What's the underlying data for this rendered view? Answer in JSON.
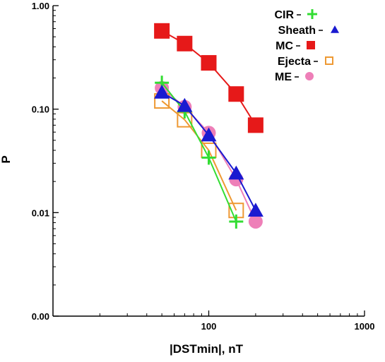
{
  "chart_data": {
    "type": "scatter",
    "title": "",
    "xlabel": "|DSTmin|, nT",
    "ylabel": "P",
    "xscale": "log",
    "yscale": "log",
    "xlim": [
      10,
      1000
    ],
    "ylim": [
      0.001,
      1
    ],
    "x_tick_labels": [
      "100",
      "1000"
    ],
    "y_tick_labels": [
      "0.00",
      "0.01",
      "0.10",
      "1.00"
    ],
    "y_tick_values": [
      0.001,
      0.01,
      0.1,
      1
    ],
    "x_tick_values": [
      100,
      1000
    ],
    "grid": false,
    "legend_position": "top-right",
    "series": [
      {
        "name": "CIR",
        "marker": "plus",
        "color": "#33dd33",
        "x": [
          50,
          70,
          100,
          150
        ],
        "y": [
          0.18,
          0.095,
          0.034,
          0.0082
        ]
      },
      {
        "name": "Sheath",
        "marker": "triangle",
        "color": "#1a1ad0",
        "x": [
          50,
          70,
          100,
          150,
          200
        ],
        "y": [
          0.145,
          0.108,
          0.056,
          0.024,
          0.0105
        ]
      },
      {
        "name": "MC",
        "marker": "square",
        "color": "#e61919",
        "x": [
          50,
          70,
          100,
          150,
          200
        ],
        "y": [
          0.57,
          0.43,
          0.28,
          0.14,
          0.07
        ]
      },
      {
        "name": "Ejecta",
        "marker": "open-square",
        "color": "#ee9933",
        "x": [
          50,
          70,
          100,
          150
        ],
        "y": [
          0.12,
          0.079,
          0.04,
          0.0105
        ]
      },
      {
        "name": "ME",
        "marker": "circle",
        "color": "#ee7fb8",
        "x": [
          50,
          70,
          100,
          150,
          200
        ],
        "y": [
          0.16,
          0.105,
          0.059,
          0.021,
          0.0082
        ]
      }
    ]
  }
}
